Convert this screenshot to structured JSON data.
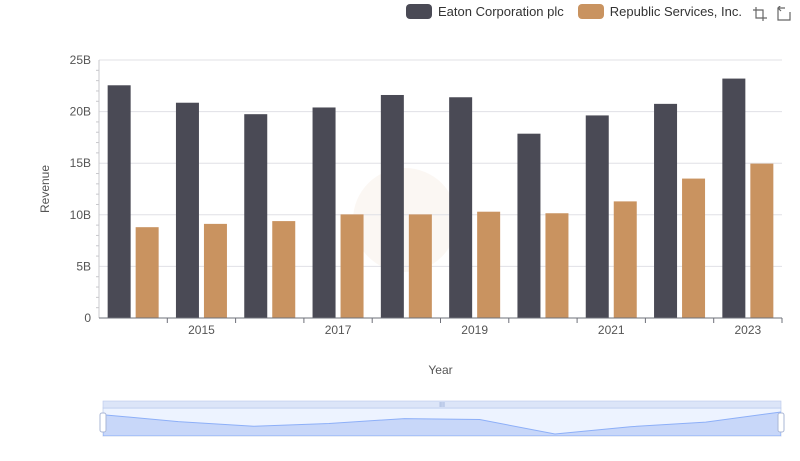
{
  "chart_data": {
    "type": "bar",
    "categories": [
      "2014",
      "2015",
      "2016",
      "2017",
      "2018",
      "2019",
      "2020",
      "2021",
      "2022",
      "2023"
    ],
    "x_tick_labels": [
      "2015",
      "2017",
      "2019",
      "2021",
      "2023"
    ],
    "series": [
      {
        "name": "Eaton Corporation plc",
        "color": "#4a4a55",
        "values": [
          22.55,
          20.86,
          19.75,
          20.4,
          21.61,
          21.39,
          17.86,
          19.63,
          20.75,
          23.2
        ]
      },
      {
        "name": "Republic Services, Inc.",
        "color": "#c99360",
        "values": [
          8.8,
          9.12,
          9.39,
          10.04,
          10.04,
          10.3,
          10.15,
          11.3,
          13.51,
          14.96
        ]
      }
    ],
    "xlabel": "Year",
    "ylabel": "Revenue",
    "ylim": [
      0,
      25
    ],
    "y_ticks": [
      "0",
      "5B",
      "10B",
      "15B",
      "20B",
      "25B"
    ],
    "grid": true,
    "legend_position": "top-right"
  },
  "toolbox": {
    "zoom_icon": "zoom-select-icon",
    "reset_icon": "zoom-reset-icon"
  }
}
